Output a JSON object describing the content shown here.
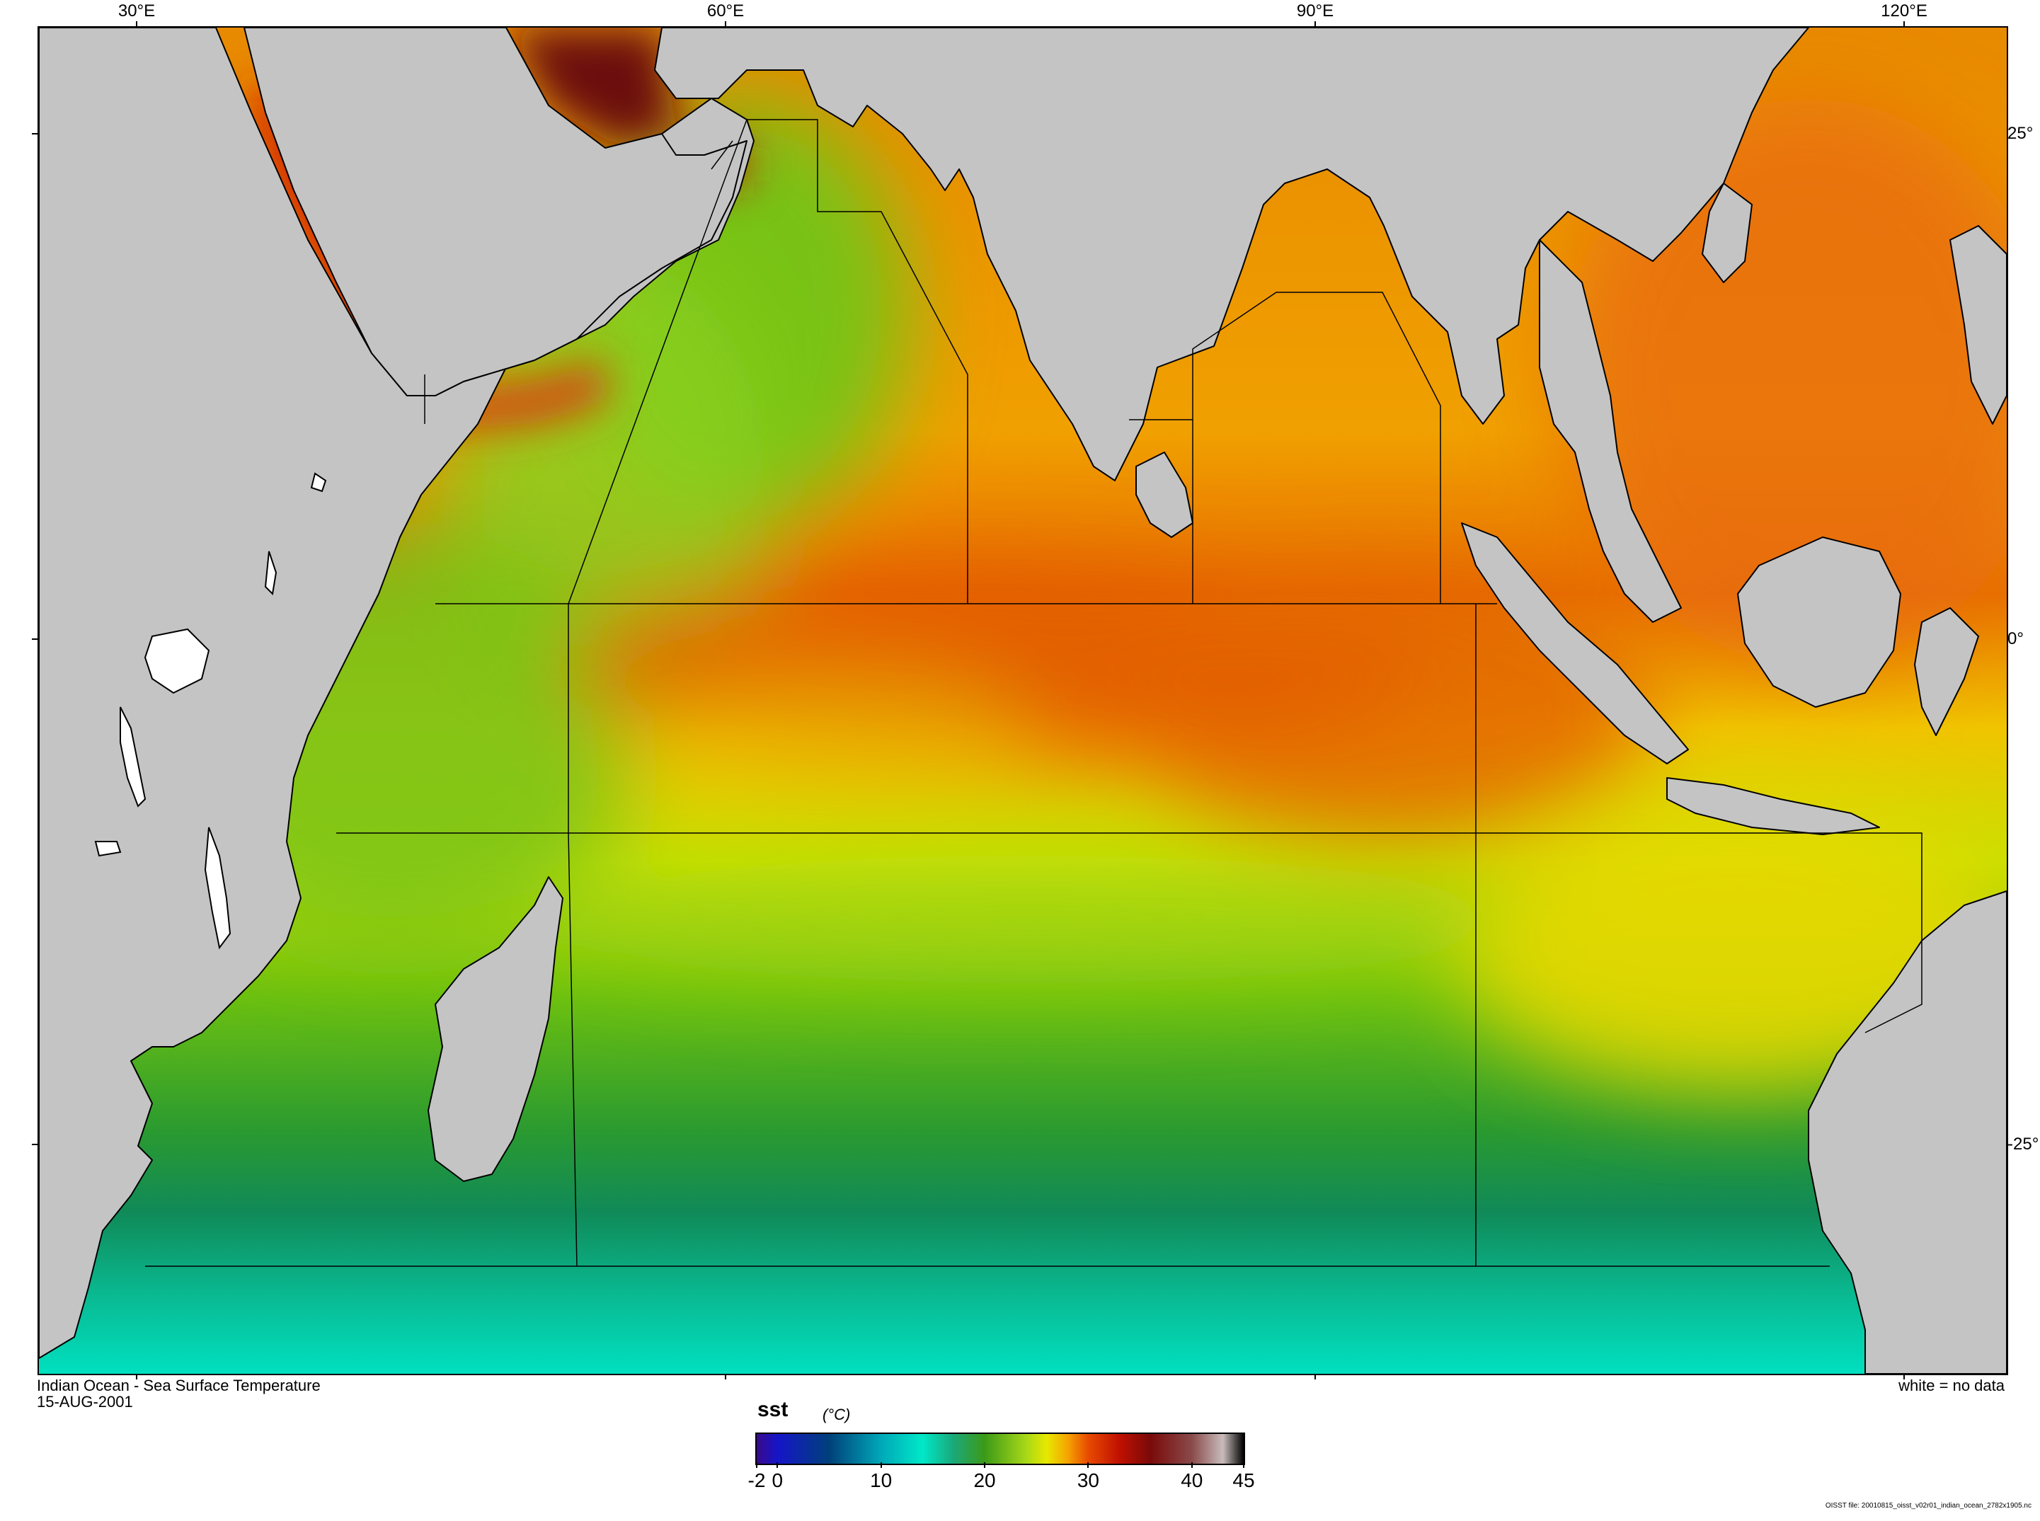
{
  "map": {
    "title": "Indian Ocean - Sea Surface Temperature",
    "date": "15-AUG-2001",
    "no_data_note": "white = no data",
    "file_note": "OISST file: 20010815_oisst_v02r01_indian_ocean_2782x1905.nc",
    "longitude_labels": [
      "30°E",
      "60°E",
      "90°E",
      "120°E"
    ],
    "latitude_labels": [
      "25°",
      "0°",
      "-25°"
    ],
    "colors": {
      "land": "#c4c4c4",
      "no_data": "#ffffff",
      "boundary": "#000000"
    }
  },
  "colorbar": {
    "variable": "sst",
    "units": "(°C)",
    "range": [
      -2,
      45
    ],
    "tick_labels": [
      "-2",
      "0",
      "10",
      "20",
      "30",
      "40",
      "45"
    ],
    "tick_values": [
      -2,
      0,
      10,
      20,
      30,
      40,
      45
    ],
    "stops": [
      {
        "value": -2,
        "color": "#3a0a8c"
      },
      {
        "value": 0,
        "color": "#1515c8"
      },
      {
        "value": 5,
        "color": "#00407a"
      },
      {
        "value": 10,
        "color": "#00a8b8"
      },
      {
        "value": 14,
        "color": "#00e8c8"
      },
      {
        "value": 17,
        "color": "#1aa878"
      },
      {
        "value": 20,
        "color": "#3c9a18"
      },
      {
        "value": 24,
        "color": "#a8d818"
      },
      {
        "value": 26,
        "color": "#e8e800"
      },
      {
        "value": 28,
        "color": "#f5a400"
      },
      {
        "value": 30,
        "color": "#e84a00"
      },
      {
        "value": 33,
        "color": "#c01000"
      },
      {
        "value": 36,
        "color": "#7a0a0a"
      },
      {
        "value": 40,
        "color": "#8a4a4a"
      },
      {
        "value": 43,
        "color": "#c8bcbc"
      },
      {
        "value": 45,
        "color": "#000000"
      }
    ]
  }
}
